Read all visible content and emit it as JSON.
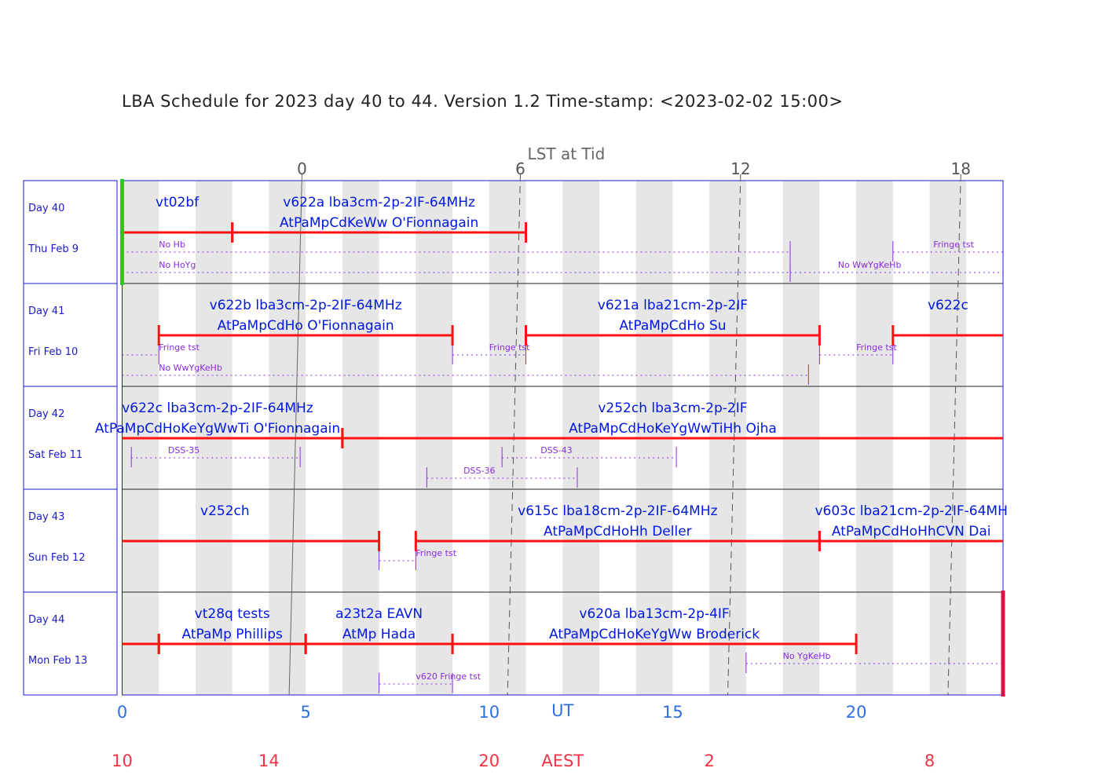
{
  "title": "LBA Schedule for 2023 day 40 to 44. Version 1.2 Time-stamp: <2023-02-02 15:00>",
  "chart_data": {
    "type": "gantt",
    "x_axis": {
      "label": "UT",
      "ticks": [
        0,
        5,
        10,
        15,
        20
      ],
      "range": [
        0,
        24
      ]
    },
    "aest_axis": {
      "label": "AEST",
      "offset_hours": 10,
      "ticks": [
        {
          "ut": 0,
          "label": "10"
        },
        {
          "ut": 4,
          "label": "14"
        },
        {
          "ut": 10,
          "label": "20"
        },
        {
          "ut": 16,
          "label": "2"
        },
        {
          "ut": 22,
          "label": "8"
        }
      ]
    },
    "lst_axis": {
      "label": "LST at Tid",
      "ticks": [
        "0",
        "6",
        "12",
        "18"
      ]
    },
    "days": [
      {
        "day": "Day 40",
        "date": "Thu Feb 9"
      },
      {
        "day": "Day 41",
        "date": "Fri Feb 10"
      },
      {
        "day": "Day 42",
        "date": "Sat Feb 11"
      },
      {
        "day": "Day 43",
        "date": "Sun Feb 12"
      },
      {
        "day": "Day 44",
        "date": "Mon Feb 13"
      }
    ],
    "lst_zero_lines": [
      {
        "lst": "0",
        "top_ut": 4.9,
        "bottom_ut": 4.55,
        "solid": true
      },
      {
        "lst": "6",
        "top_ut": 10.85,
        "bottom_ut": 10.5,
        "solid": false
      },
      {
        "lst": "12",
        "top_ut": 16.85,
        "bottom_ut": 16.5,
        "solid": false
      },
      {
        "lst": "18",
        "top_ut": 22.85,
        "bottom_ut": 22.5,
        "solid": false
      }
    ],
    "observations": [
      {
        "row": 0,
        "start": 0,
        "end": 3,
        "line1": "vt02bf",
        "line2": "",
        "label_ut": 1.5
      },
      {
        "row": 0,
        "start": 3,
        "end": 11,
        "line1": "v622a lba3cm-2p-2IF-64MHz",
        "line2": "AtPaMpCdKeWw O'Fionnagain",
        "label_ut": 7
      },
      {
        "row": 1,
        "start": 1,
        "end": 9,
        "line1": "v622b lba3cm-2p-2IF-64MHz",
        "line2": "AtPaMpCdHo O'Fionnagain",
        "label_ut": 5
      },
      {
        "row": 1,
        "start": 11,
        "end": 19,
        "line1": "v621a lba21cm-2p-2IF",
        "line2": "AtPaMpCdHo Su",
        "label_ut": 15
      },
      {
        "row": 1,
        "start": 21,
        "end": 24,
        "line1": "v622c",
        "line2": "",
        "label_ut": 22.5
      },
      {
        "row": 2,
        "start": 0,
        "end": 6,
        "line1": "v622c lba3cm-2p-2IF-64MHz",
        "line2": "AtPaMpCdHoKeYgWwTi O'Fionnagain",
        "label_ut": 2.6
      },
      {
        "row": 2,
        "start": 6,
        "end": 24,
        "line1": "v252ch lba3cm-2p-2IF",
        "line2": "AtPaMpCdHoKeYgWwTiHh Ojha",
        "label_ut": 15
      },
      {
        "row": 3,
        "start": 0,
        "end": 7,
        "line1": "v252ch",
        "line2": "",
        "label_ut": 2.8
      },
      {
        "row": 3,
        "start": 8,
        "end": 19,
        "line1": "v615c lba18cm-2p-2IF-64MHz",
        "line2": "AtPaMpCdHoHh Deller",
        "label_ut": 13.5
      },
      {
        "row": 3,
        "start": 19,
        "end": 24,
        "line1": "v603c lba21cm-2p-2IF-64MH",
        "line2": "AtPaMpCdHoHhCVN Dai",
        "label_ut": 21.5
      },
      {
        "row": 4,
        "start": 0,
        "end": 1,
        "line1": "",
        "line2": "",
        "label_ut": 0.5
      },
      {
        "row": 4,
        "start": 1,
        "end": 5,
        "line1": "vt28q tests",
        "line2": "AtPaMp Phillips",
        "label_ut": 3
      },
      {
        "row": 4,
        "start": 5,
        "end": 9,
        "line1": "a23t2a EAVN",
        "line2": "AtMp Hada",
        "label_ut": 7
      },
      {
        "row": 4,
        "start": 9,
        "end": 20,
        "line1": "v620a lba13cm-2p-4IF",
        "line2": "AtPaMpCdHoKeYgWw Broderick",
        "label_ut": 14.5
      }
    ],
    "notes": [
      {
        "row": 0,
        "lane": 0,
        "start": 0,
        "end": 18.2,
        "label": "No Hb",
        "label_ut": 1
      },
      {
        "row": 0,
        "lane": 0,
        "start": 21,
        "end": 24,
        "label": "Fringe tst",
        "label_ut": 22.1
      },
      {
        "row": 0,
        "lane": 1,
        "start": 0,
        "end": 18.2,
        "label": "No HoYg",
        "label_ut": 1
      },
      {
        "row": 0,
        "lane": 1,
        "start": 18.2,
        "end": 24,
        "label": "No WwYgKeHb",
        "label_ut": 19.5
      },
      {
        "row": 1,
        "lane": 0,
        "start": 0,
        "end": 1,
        "label": "Fringe tst",
        "label_ut": 1
      },
      {
        "row": 1,
        "lane": 0,
        "start": 9,
        "end": 11,
        "label": "Fringe tst",
        "label_ut": 10
      },
      {
        "row": 1,
        "lane": 0,
        "start": 19,
        "end": 21,
        "label": "Fringe tst",
        "label_ut": 20
      },
      {
        "row": 1,
        "lane": 1,
        "start": 0,
        "end": 18.7,
        "label": "No WwYgKeHb",
        "label_ut": 1
      },
      {
        "row": 2,
        "lane": 0,
        "start": 0.25,
        "end": 4.85,
        "label": "DSS-35",
        "label_ut": 1.25
      },
      {
        "row": 2,
        "lane": 0,
        "start": 10.35,
        "end": 15.1,
        "label": "DSS-43",
        "label_ut": 11.4
      },
      {
        "row": 2,
        "lane": 1,
        "start": 8.3,
        "end": 12.4,
        "label": "DSS-36",
        "label_ut": 9.3
      },
      {
        "row": 3,
        "lane": 0,
        "start": 7,
        "end": 8,
        "label": "Fringe tst",
        "label_ut": 8
      },
      {
        "row": 4,
        "lane": 0,
        "start": 17,
        "end": 24,
        "label": "No YgKeHb",
        "label_ut": 18
      },
      {
        "row": 4,
        "lane": 1,
        "start": 7,
        "end": 9,
        "label": "v620 Fringe tst",
        "label_ut": 8
      }
    ],
    "markers": [
      {
        "row": 0,
        "ut": 0,
        "color": "#22cc22"
      },
      {
        "row": 4,
        "ut": 24,
        "color": "#dd1144"
      }
    ],
    "colors": {
      "bar": "#ff1111",
      "label": "#0018e0",
      "note": "#8a2be2",
      "stripe": "#e6e6e6",
      "frame": "#1a1acc"
    }
  }
}
